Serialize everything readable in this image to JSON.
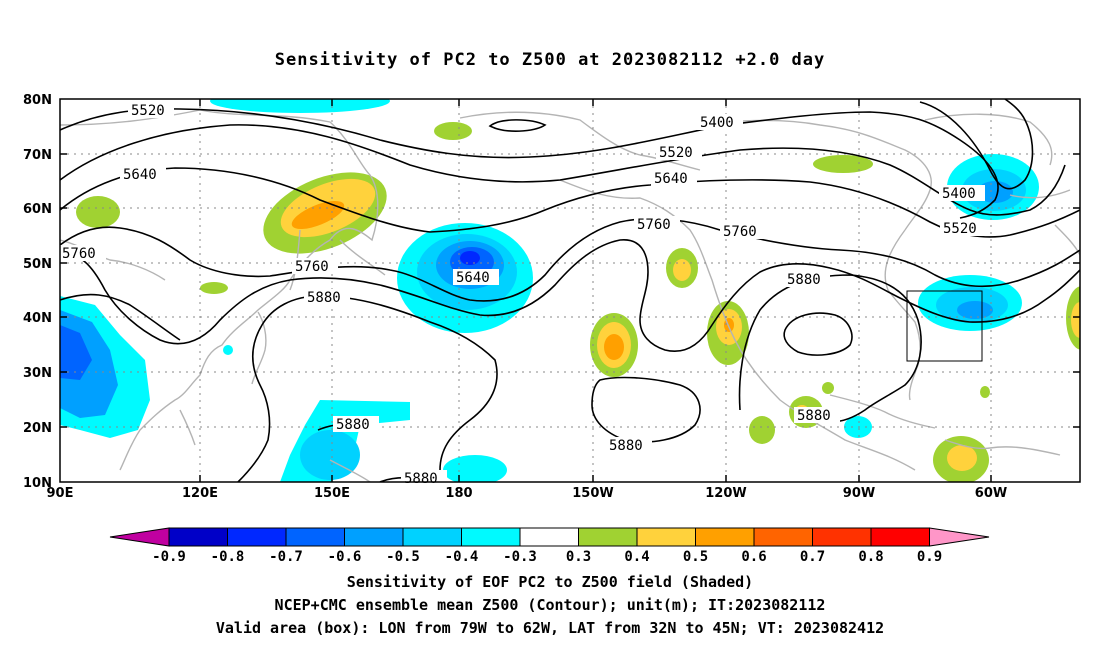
{
  "title": "Sensitivity of PC2 to Z500 at 2023082112 +2.0 day",
  "map": {
    "lat_ticks": [
      "10N",
      "20N",
      "30N",
      "40N",
      "50N",
      "60N",
      "70N",
      "80N"
    ],
    "lon_ticks": [
      "90E",
      "120E",
      "150E",
      "180",
      "150W",
      "120W",
      "90W",
      "60W"
    ],
    "extent": {
      "lon_min": 90,
      "lon_max": 320,
      "lat_min": 10,
      "lat_max": 80
    },
    "valid_box": {
      "lon_from": "79W",
      "lon_to": "62W",
      "lat_from": "32N",
      "lat_to": "45N"
    },
    "contour_labels": [
      "5520",
      "5400",
      "5520",
      "5640",
      "5400",
      "5520",
      "5640",
      "5760",
      "5760",
      "5760",
      "5880",
      "5640",
      "5880",
      "5880",
      "5880",
      "5880",
      "5880"
    ],
    "contour_color": "#000000",
    "coast_color": "#b4b4b4"
  },
  "colorbar": {
    "levels": [
      "-0.9",
      "-0.8",
      "-0.7",
      "-0.6",
      "-0.5",
      "-0.4",
      "-0.3",
      "0.3",
      "0.4",
      "0.5",
      "0.6",
      "0.7",
      "0.8",
      "0.9"
    ],
    "colors": [
      "#c000a0",
      "#0000c8",
      "#0028ff",
      "#0064ff",
      "#00a0ff",
      "#00d2ff",
      "#00faff",
      "#ffffff",
      "#a0d232",
      "#ffd23c",
      "#ffa000",
      "#ff6400",
      "#ff3200",
      "#ff0000",
      "#ff96c8"
    ]
  },
  "footer": {
    "line1": "Sensitivity of EOF PC2 to Z500 field (Shaded)",
    "line2": "NCEP+CMC ensemble mean Z500 (Contour); unit(m); IT:2023082112",
    "line3": "Valid area (box): LON from 79W to 62W, LAT from 32N to 45N; VT: 2023082412"
  }
}
